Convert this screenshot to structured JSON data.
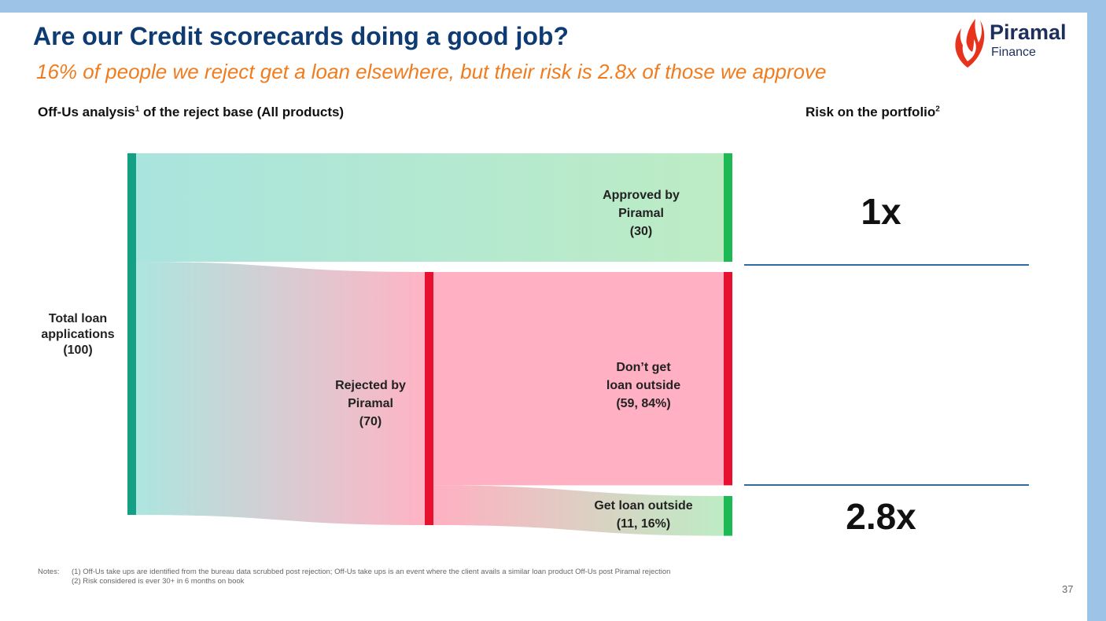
{
  "header": {
    "title": "Are our Credit scorecards doing a good job?",
    "subtitle": "16% of people we reject get a loan elsewhere, but their risk is 2.8x of those we approve"
  },
  "logo": {
    "brand": "Piramal",
    "sub": "Finance"
  },
  "left_section": {
    "title_pre": "Off-Us analysis",
    "title_sup": "1",
    "title_post": " of the reject base (All products)"
  },
  "right_section": {
    "title_pre": "Risk on the portfolio",
    "title_sup": "2"
  },
  "nodes": {
    "total": {
      "l1": "Total loan",
      "l2": "applications",
      "l3": "(100)"
    },
    "approved": {
      "l1": "Approved by",
      "l2": "Piramal",
      "l3": "(30)"
    },
    "rejected": {
      "l1": "Rejected by",
      "l2": "Piramal",
      "l3": "(70)"
    },
    "dont_get": {
      "l1": "Don’t get",
      "l2": "loan outside",
      "l3": "(59, 84%)"
    },
    "get_loan": {
      "l1": "Get loan outside",
      "l2": "(11, 16%)"
    }
  },
  "risk": {
    "approved": "1x",
    "get_loan_outside": "2.8x"
  },
  "colors": {
    "total_node": "#14a085",
    "approved_node": "#1db954",
    "rejected_node": "#e8102f",
    "get_loan_node": "#1db954",
    "flow_teal": "#a9e4de",
    "flow_green": "#bdecc4",
    "flow_pink": "#ffb0c2",
    "flow_grey": "#cfd3d3"
  },
  "flows": [
    {
      "from": "total",
      "to": "approved",
      "value": 30
    },
    {
      "from": "total",
      "to": "rejected",
      "value": 70
    },
    {
      "from": "rejected",
      "to": "dont_get",
      "value": 59
    },
    {
      "from": "rejected",
      "to": "get_loan",
      "value": 11
    }
  ],
  "notes": {
    "label": "Notes:",
    "line1": "(1) Off-Us take ups are identified from the bureau data scrubbed post rejection; Off-Us take ups is an event where the client avails a similar loan product Off-Us post Piramal rejection",
    "line2": "(2) Risk considered is ever 30+ in 6 months on book"
  },
  "page_number": "37"
}
